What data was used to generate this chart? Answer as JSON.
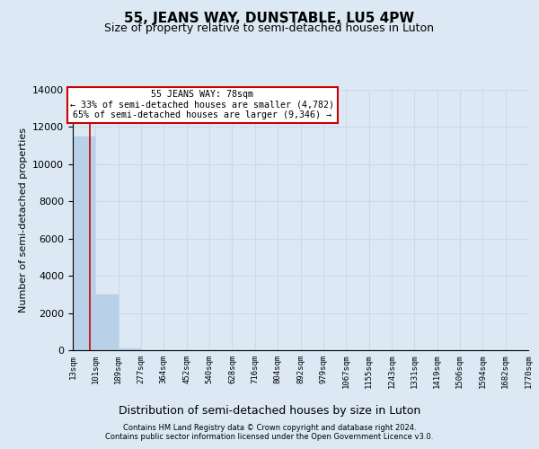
{
  "title": "55, JEANS WAY, DUNSTABLE, LU5 4PW",
  "subtitle": "Size of property relative to semi-detached houses in Luton",
  "xlabel": "Distribution of semi-detached houses by size in Luton",
  "ylabel": "Number of semi-detached properties",
  "property_size": 78,
  "property_name": "55 JEANS WAY",
  "pct_smaller": 33,
  "count_smaller": 4782,
  "pct_larger": 65,
  "count_larger": 9346,
  "bin_edges": [
    13,
    101,
    189,
    277,
    364,
    452,
    540,
    628,
    716,
    804,
    892,
    979,
    1067,
    1155,
    1243,
    1331,
    1419,
    1506,
    1594,
    1682,
    1770
  ],
  "bin_labels": [
    "13sqm",
    "101sqm",
    "189sqm",
    "277sqm",
    "364sqm",
    "452sqm",
    "540sqm",
    "628sqm",
    "716sqm",
    "804sqm",
    "892sqm",
    "979sqm",
    "1067sqm",
    "1155sqm",
    "1243sqm",
    "1331sqm",
    "1419sqm",
    "1506sqm",
    "1594sqm",
    "1682sqm",
    "1770sqm"
  ],
  "bar_heights": [
    11500,
    3000,
    120,
    0,
    0,
    0,
    0,
    0,
    0,
    0,
    0,
    0,
    0,
    0,
    0,
    0,
    0,
    0,
    0,
    0
  ],
  "bar_color": "#b8d0e8",
  "bar_edge_color": "#b8d0e8",
  "grid_color": "#c8daea",
  "background_color": "#dce9f5",
  "annotation_box_color": "#ffffff",
  "annotation_box_edge": "#cc0000",
  "vline_color": "#cc0000",
  "ylim": [
    0,
    14000
  ],
  "yticks": [
    0,
    2000,
    4000,
    6000,
    8000,
    10000,
    12000,
    14000
  ],
  "footer_line1": "Contains HM Land Registry data © Crown copyright and database right 2024.",
  "footer_line2": "Contains public sector information licensed under the Open Government Licence v3.0."
}
